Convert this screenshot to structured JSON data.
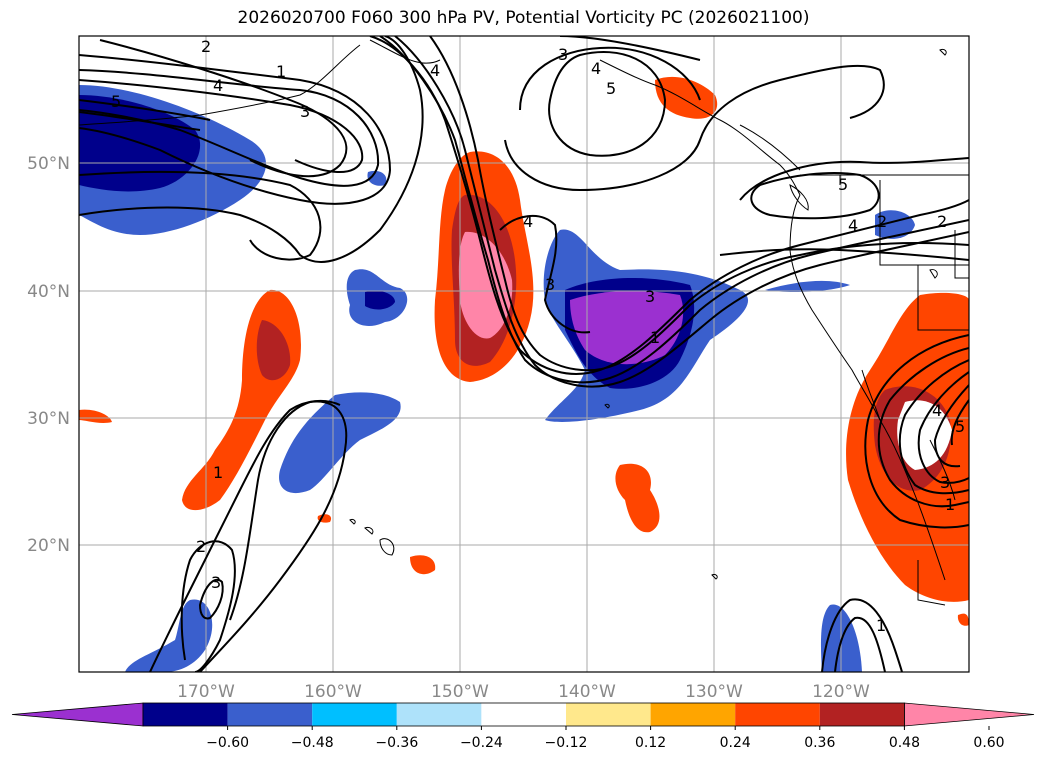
{
  "title": "2026020700 F060 300 hPa PV, Potential Vorticity PC (2026021100)",
  "lat_labels": [
    "50°N",
    "40°N",
    "30°N",
    "20°N"
  ],
  "lon_labels": [
    "170°W",
    "160°W",
    "150°W",
    "140°W",
    "130°W",
    "120°W"
  ],
  "contour_labels": [
    "1",
    "2",
    "3",
    "4",
    "5"
  ],
  "colorbar": {
    "ticks": [
      "−0.60",
      "−0.48",
      "−0.36",
      "−0.24",
      "−0.12",
      "0.12",
      "0.24",
      "0.36",
      "0.48",
      "0.60"
    ],
    "colors": [
      "#9b30d0",
      "#00008b",
      "#3a5fcd",
      "#00bfff",
      "#aee2fa",
      "#ffffff",
      "#ffe88c",
      "#ffa500",
      "#ff4500",
      "#b22222",
      "#ff85a8"
    ]
  },
  "colors": {
    "neg_outer": "#3a5fcd",
    "neg_mid": "#00008b",
    "neg_core": "#9b30d0",
    "pos_outer": "#ff4500",
    "pos_mid": "#b22222",
    "pos_core": "#ff85a8",
    "grid": "#aaaaaa"
  }
}
